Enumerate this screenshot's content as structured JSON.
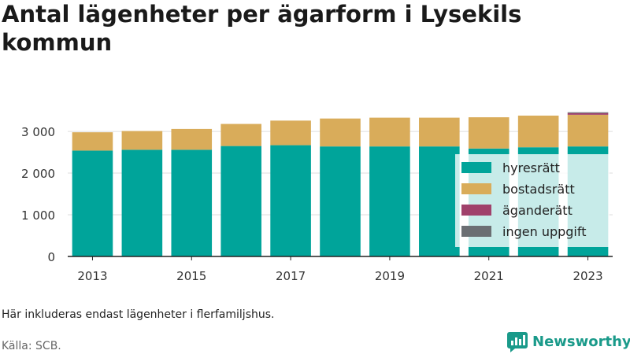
{
  "chart_data": {
    "type": "bar",
    "stacked": true,
    "title": "Antal lägenheter per ägarform i Lysekils kommun",
    "categories": [
      "2013",
      "2014",
      "2015",
      "2016",
      "2017",
      "2018",
      "2019",
      "2020",
      "2021",
      "2022",
      "2023"
    ],
    "x_tick_labels": [
      "2013",
      "2015",
      "2017",
      "2019",
      "2021",
      "2023"
    ],
    "y_ticks": [
      0,
      1000,
      2000,
      3000
    ],
    "y_tick_labels": [
      "0",
      "1 000",
      "2 000",
      "3 000"
    ],
    "ylim": [
      0,
      3700
    ],
    "grid": "horizontal",
    "legend_position": "right, inside plot",
    "series": [
      {
        "name": "hyresrätt",
        "color": "#00a49a",
        "values": [
          2540,
          2560,
          2560,
          2650,
          2670,
          2640,
          2640,
          2640,
          2590,
          2620,
          2640
        ]
      },
      {
        "name": "bostadsrätt",
        "color": "#d9ac5a",
        "values": [
          440,
          450,
          500,
          530,
          590,
          670,
          690,
          690,
          750,
          760,
          760
        ]
      },
      {
        "name": "äganderätt",
        "color": "#a0416b",
        "values": [
          0,
          0,
          0,
          0,
          0,
          0,
          0,
          0,
          0,
          0,
          40
        ]
      },
      {
        "name": "ingen uppgift",
        "color": "#6b6f73",
        "values": [
          0,
          0,
          0,
          0,
          0,
          0,
          0,
          0,
          0,
          0,
          20
        ]
      }
    ]
  },
  "footer": {
    "note": "Här inkluderas endast lägenheter i flerfamiljshus.",
    "source": "Källa: SCB.",
    "brand": "Newsworthy"
  }
}
